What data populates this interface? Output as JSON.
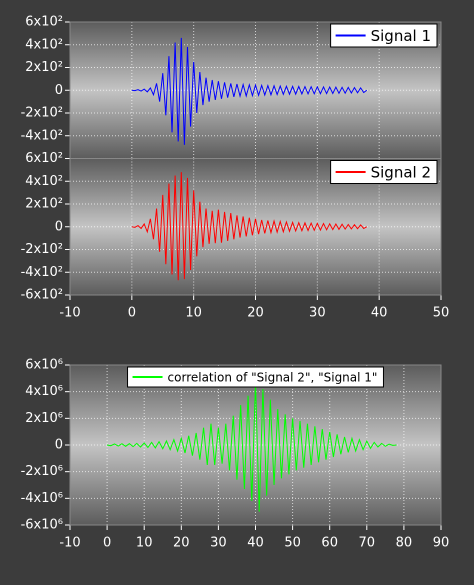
{
  "chart_data": [
    {
      "type": "line",
      "subplots": true,
      "grid": true,
      "legend": "upper right",
      "x": [
        0,
        0.5,
        1,
        1.5,
        2,
        2.5,
        3,
        3.5,
        4,
        4.5,
        5,
        5.5,
        6,
        6.5,
        7,
        7.5,
        8,
        8.5,
        9,
        9.5,
        10,
        10.5,
        11,
        11.5,
        12,
        12.5,
        13,
        13.5,
        14,
        14.5,
        15,
        15.5,
        16,
        16.5,
        17,
        17.5,
        18,
        18.5,
        19,
        19.5,
        20,
        20.5,
        21,
        21.5,
        22,
        22.5,
        23,
        23.5,
        24,
        24.5,
        25,
        25.5,
        26,
        26.5,
        27,
        27.5,
        28,
        28.5,
        29,
        29.5,
        30,
        30.5,
        31,
        31.5,
        32,
        32.5,
        33,
        33.5,
        34,
        34.5,
        35,
        35.5,
        36,
        36.5,
        37,
        37.5,
        38
      ],
      "xlim": [
        -10,
        50
      ],
      "xticks": [
        -10,
        0,
        10,
        20,
        30,
        40,
        50
      ],
      "ylim": [
        -600,
        600
      ],
      "yticks": [
        {
          "value": 600,
          "label": "6x10²"
        },
        {
          "value": 400,
          "label": "4x10²"
        },
        {
          "value": 200,
          "label": "2x10²"
        },
        0,
        {
          "value": -200,
          "label": "-2x10²"
        },
        {
          "value": -400,
          "label": "-4x10²"
        },
        {
          "value": -600,
          "label": "-6x10²"
        }
      ],
      "series": [
        {
          "name": "Signal 1",
          "color": "#0000ff",
          "values": [
            0,
            -3,
            5,
            -7,
            10,
            -14,
            20,
            -40,
            60,
            -100,
            150,
            -220,
            300,
            -370,
            420,
            -450,
            460,
            -480,
            380,
            -320,
            250,
            -200,
            160,
            -130,
            110,
            -100,
            90,
            -85,
            80,
            -75,
            70,
            -65,
            60,
            -58,
            55,
            -52,
            50,
            -50,
            48,
            -47,
            45,
            -44,
            43,
            -42,
            41,
            -40,
            39,
            -38,
            37,
            -36,
            35,
            -35,
            34,
            -34,
            33,
            -33,
            32,
            -32,
            31,
            -31,
            30,
            -30,
            29,
            -29,
            28,
            -28,
            27,
            -27,
            26,
            -26,
            25,
            -24,
            23,
            -22,
            21,
            -20,
            0
          ]
        },
        {
          "name": "Signal 2",
          "color": "#ff0000",
          "values": [
            0,
            -5,
            10,
            -15,
            25,
            -45,
            70,
            -110,
            160,
            -220,
            280,
            -330,
            380,
            -420,
            450,
            -470,
            480,
            -460,
            430,
            -380,
            320,
            -260,
            220,
            -180,
            160,
            -150,
            140,
            -145,
            150,
            -140,
            130,
            -125,
            120,
            -110,
            100,
            -95,
            90,
            -85,
            80,
            -75,
            70,
            -65,
            60,
            -58,
            55,
            -52,
            50,
            -48,
            46,
            -44,
            42,
            -40,
            38,
            -37,
            36,
            -35,
            34,
            -33,
            32,
            -31,
            30,
            -29,
            28,
            -27,
            26,
            -25,
            24,
            -23,
            22,
            -21,
            20,
            -19,
            18,
            -17,
            16,
            -15,
            0
          ]
        }
      ]
    },
    {
      "type": "line",
      "grid": true,
      "legend": "upper center",
      "x": [
        0,
        1,
        2,
        3,
        4,
        5,
        6,
        7,
        8,
        9,
        10,
        11,
        12,
        13,
        14,
        15,
        16,
        17,
        18,
        19,
        20,
        21,
        22,
        23,
        24,
        25,
        26,
        27,
        28,
        29,
        30,
        31,
        32,
        33,
        34,
        35,
        36,
        37,
        38,
        39,
        40,
        41,
        42,
        43,
        44,
        45,
        46,
        47,
        48,
        49,
        50,
        51,
        52,
        53,
        54,
        55,
        56,
        57,
        58,
        59,
        60,
        61,
        62,
        63,
        64,
        65,
        66,
        67,
        68,
        69,
        70,
        71,
        72,
        73,
        74,
        75,
        76,
        77,
        78
      ],
      "xlim": [
        -10,
        90
      ],
      "xticks": [
        -10,
        0,
        10,
        20,
        30,
        40,
        50,
        60,
        70,
        80,
        90
      ],
      "ylim": [
        -6000000.0,
        6000000.0
      ],
      "yticks": [
        {
          "value": 6000000.0,
          "label": "6x10⁶"
        },
        {
          "value": 4000000.0,
          "label": "4x10⁶"
        },
        {
          "value": 2000000.0,
          "label": "2x10⁶"
        },
        0,
        {
          "value": -2000000.0,
          "label": "-2x10⁶"
        },
        {
          "value": -4000000.0,
          "label": "-4x10⁶"
        },
        {
          "value": -6000000.0,
          "label": "-6x10⁶"
        }
      ],
      "series": [
        {
          "name": "correlation of \"Signal 2\", \"Signal 1\"",
          "color": "#00ff00",
          "values": [
            0,
            -50000.0,
            80000.0,
            -80000.0,
            100000.0,
            -100000.0,
            100000.0,
            -120000.0,
            120000.0,
            -150000.0,
            150000.0,
            -180000.0,
            200000.0,
            -220000.0,
            250000.0,
            -280000.0,
            300000.0,
            -350000.0,
            400000.0,
            -450000.0,
            500000.0,
            -600000.0,
            700000.0,
            -800000.0,
            900000.0,
            -1100000.0,
            1300000.0,
            -1500000.0,
            1600000.0,
            -1500000.0,
            1300000.0,
            -1400000.0,
            1600000.0,
            -1900000.0,
            2200000.0,
            -2600000.0,
            3000000.0,
            -3300000.0,
            3700000.0,
            -4200000.0,
            4700000.0,
            -5000000.0,
            4200000.0,
            -3800000.0,
            3400000.0,
            -3000000.0,
            2700000.0,
            -2500000.0,
            2300000.0,
            -2200000.0,
            2000000.0,
            -1900000.0,
            1800000.0,
            -1700000.0,
            1600000.0,
            -1500000.0,
            1400000.0,
            -1300000.0,
            1200000.0,
            -1100000.0,
            1000000.0,
            -900000.0,
            800000.0,
            -700000.0,
            600000.0,
            -550000.0,
            500000.0,
            -450000.0,
            400000.0,
            -350000.0,
            300000.0,
            -250000.0,
            200000.0,
            -150000.0,
            120000.0,
            -100000.0,
            60000.0,
            -30000.0,
            0
          ]
        }
      ]
    }
  ]
}
